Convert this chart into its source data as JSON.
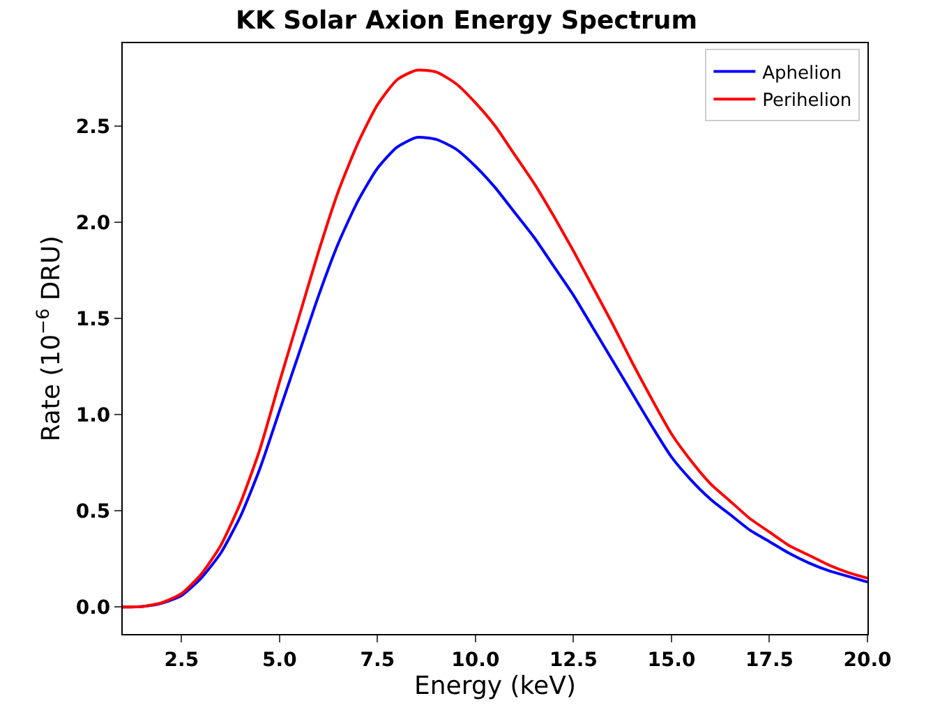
{
  "chart_data": {
    "type": "line",
    "title": "KK Solar Axion Energy Spectrum",
    "xlabel": "Energy (keV)",
    "ylabel": "Rate (10$^{−6}$ DRU)",
    "x": [
      1,
      1.5,
      2,
      2.5,
      3,
      3.5,
      4,
      4.5,
      5,
      5.5,
      6,
      6.5,
      7,
      7.5,
      8,
      8.5,
      9,
      9.5,
      10,
      10.5,
      11,
      11.5,
      12,
      12.5,
      13,
      13.5,
      14,
      14.5,
      15,
      15.5,
      16,
      16.5,
      17,
      17.5,
      18,
      18.5,
      19,
      19.5,
      20
    ],
    "series": [
      {
        "name": "Aphelion",
        "color": "#0000ff",
        "values": [
          0,
          0.003,
          0.02,
          0.06,
          0.15,
          0.28,
          0.47,
          0.72,
          1.02,
          1.32,
          1.62,
          1.89,
          2.11,
          2.28,
          2.39,
          2.44,
          2.43,
          2.38,
          2.29,
          2.18,
          2.05,
          1.92,
          1.77,
          1.62,
          1.45,
          1.28,
          1.11,
          0.94,
          0.78,
          0.66,
          0.56,
          0.48,
          0.4,
          0.34,
          0.28,
          0.23,
          0.19,
          0.16,
          0.13
        ]
      },
      {
        "name": "Perihelion",
        "color": "#ff0000",
        "values": [
          0,
          0.003,
          0.023,
          0.07,
          0.17,
          0.32,
          0.54,
          0.82,
          1.17,
          1.51,
          1.85,
          2.16,
          2.41,
          2.61,
          2.74,
          2.79,
          2.78,
          2.72,
          2.62,
          2.5,
          2.35,
          2.2,
          2.03,
          1.85,
          1.66,
          1.47,
          1.27,
          1.08,
          0.9,
          0.76,
          0.64,
          0.55,
          0.46,
          0.39,
          0.32,
          0.27,
          0.22,
          0.18,
          0.15
        ]
      }
    ],
    "xlim": [
      1,
      20
    ],
    "xticks": [
      {
        "value": 2.5,
        "label": "2.5"
      },
      {
        "value": 5,
        "label": "5.0"
      },
      {
        "value": 7.5,
        "label": "7.5"
      },
      {
        "value": 10,
        "label": "10.0"
      },
      {
        "value": 12.5,
        "label": "12.5"
      },
      {
        "value": 15,
        "label": "15.0"
      },
      {
        "value": 17.5,
        "label": "17.5"
      },
      {
        "value": 20,
        "label": "20.0"
      }
    ],
    "ylim": [
      -0.14,
      2.93
    ],
    "yticks": [
      {
        "value": 0,
        "label": "0.0"
      },
      0.5,
      {
        "value": 1,
        "label": "1.0"
      },
      1.5,
      {
        "value": 2,
        "label": "2.0"
      },
      2.5
    ],
    "legend": "top right",
    "marker": "none",
    "line_style": "solid"
  }
}
